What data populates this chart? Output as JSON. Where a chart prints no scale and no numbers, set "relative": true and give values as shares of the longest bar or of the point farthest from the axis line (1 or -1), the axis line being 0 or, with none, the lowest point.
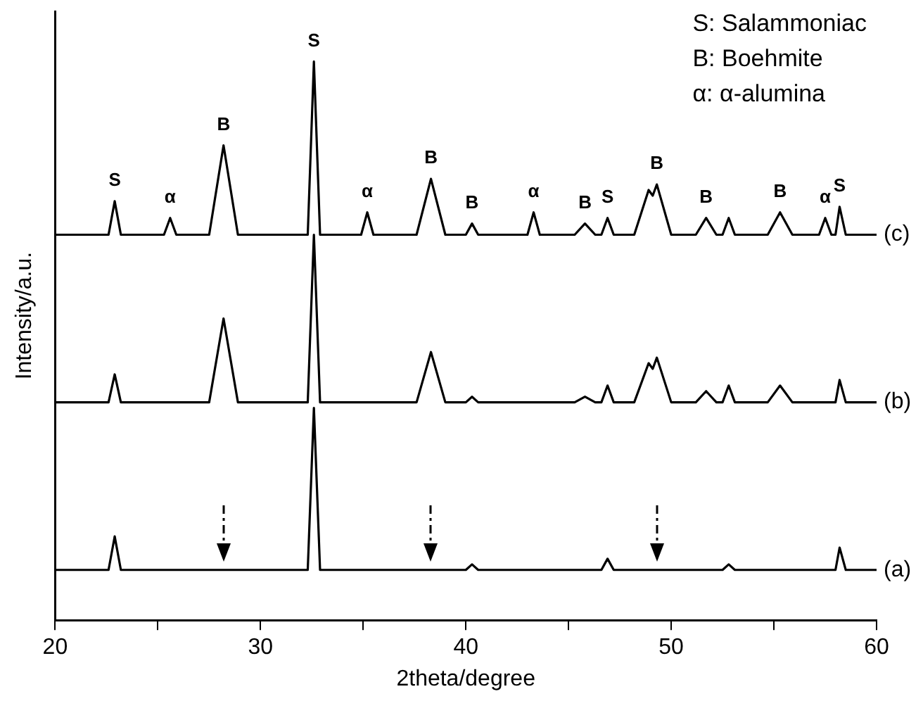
{
  "chart_data": {
    "type": "line",
    "relative": true,
    "xlabel": "2theta/degree",
    "ylabel": "Intensity/a.u.",
    "x": [
      20,
      22.6,
      22.9,
      23.2,
      25.3,
      25.6,
      25.9,
      27.5,
      28.2,
      28.9,
      32.3,
      32.6,
      32.9,
      34.9,
      35.2,
      35.5,
      37.6,
      38.3,
      39.0,
      40.0,
      40.3,
      40.6,
      43.0,
      43.3,
      43.6,
      45.3,
      45.8,
      46.3,
      46.6,
      46.9,
      47.2,
      48.2,
      48.9,
      49.1,
      49.3,
      50.0,
      51.2,
      51.7,
      52.2,
      52.5,
      52.8,
      53.1,
      54.7,
      55.3,
      55.9,
      57.2,
      57.5,
      57.8,
      58.0,
      58.2,
      58.5,
      60
    ],
    "xlim": [
      20,
      60
    ],
    "xticks": [
      20,
      {
        "value": 25,
        "label": null
      },
      30,
      {
        "value": 35,
        "label": null
      },
      40,
      {
        "value": 45,
        "label": null
      },
      50,
      {
        "value": 55,
        "label": null
      },
      60
    ],
    "series": [
      {
        "name": "(a)",
        "color": "#000000",
        "values": [
          0.09,
          0.09,
          0.15,
          0.09,
          0.09,
          0.09,
          0.09,
          0.09,
          0.09,
          0.09,
          0.09,
          0.38,
          0.09,
          0.09,
          0.09,
          0.09,
          0.09,
          0.09,
          0.09,
          0.09,
          0.1,
          0.09,
          0.09,
          0.09,
          0.09,
          0.09,
          0.09,
          0.09,
          0.09,
          0.11,
          0.09,
          0.09,
          0.09,
          0.09,
          0.09,
          0.09,
          0.09,
          0.09,
          0.09,
          0.09,
          0.1,
          0.09,
          0.09,
          0.09,
          0.09,
          0.09,
          0.09,
          0.09,
          0.09,
          0.13,
          0.09,
          0.09
        ]
      },
      {
        "name": "(b)",
        "color": "#000000",
        "values": [
          0.39,
          0.39,
          0.44,
          0.39,
          0.39,
          0.39,
          0.39,
          0.39,
          0.54,
          0.39,
          0.39,
          0.69,
          0.39,
          0.39,
          0.39,
          0.39,
          0.39,
          0.48,
          0.39,
          0.39,
          0.4,
          0.39,
          0.39,
          0.39,
          0.39,
          0.39,
          0.4,
          0.39,
          0.39,
          0.42,
          0.39,
          0.39,
          0.46,
          0.45,
          0.47,
          0.39,
          0.39,
          0.41,
          0.39,
          0.39,
          0.42,
          0.39,
          0.39,
          0.42,
          0.39,
          0.39,
          0.39,
          0.39,
          0.39,
          0.43,
          0.39,
          0.39
        ]
      },
      {
        "name": "(c)",
        "color": "#000000",
        "values": [
          0.69,
          0.69,
          0.75,
          0.69,
          0.69,
          0.72,
          0.69,
          0.69,
          0.85,
          0.69,
          0.69,
          1,
          0.69,
          0.69,
          0.73,
          0.69,
          0.69,
          0.79,
          0.69,
          0.69,
          0.71,
          0.69,
          0.69,
          0.73,
          0.69,
          0.69,
          0.71,
          0.69,
          0.69,
          0.72,
          0.69,
          0.69,
          0.77,
          0.76,
          0.78,
          0.69,
          0.69,
          0.72,
          0.69,
          0.69,
          0.72,
          0.69,
          0.69,
          0.73,
          0.69,
          0.69,
          0.72,
          0.69,
          0.69,
          0.74,
          0.69,
          0.69
        ]
      }
    ],
    "annotations": [
      "S: Salammoniac",
      "B: Boehmite",
      "α: α-alumina",
      {
        "text": "S",
        "x": 22.9,
        "y": 0.75
      },
      {
        "text": "α",
        "x": 25.6,
        "y": 0.72
      },
      {
        "text": "B",
        "x": 28.2,
        "y": 0.85
      },
      {
        "text": "S",
        "x": 32.6,
        "y": 1
      },
      {
        "text": "α",
        "x": 35.2,
        "y": 0.73
      },
      {
        "text": "B",
        "x": 38.3,
        "y": 0.79
      },
      {
        "text": "B",
        "x": 40.3,
        "y": 0.71
      },
      {
        "text": "α",
        "x": 43.3,
        "y": 0.73
      },
      {
        "text": "B",
        "x": 45.8,
        "y": 0.71
      },
      {
        "text": "S",
        "x": 46.9,
        "y": 0.72
      },
      {
        "text": "B",
        "x": 49.3,
        "y": 0.78
      },
      {
        "text": "B",
        "x": 51.7,
        "y": 0.72
      },
      {
        "text": "B",
        "x": 55.3,
        "y": 0.73
      },
      {
        "text": "α",
        "x": 57.5,
        "y": 0.72
      },
      {
        "text": "S",
        "x": 58.2,
        "y": 0.74
      }
    ]
  }
}
